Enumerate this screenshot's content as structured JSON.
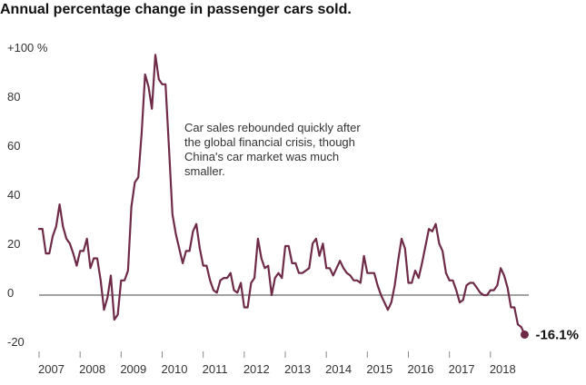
{
  "chart_data": {
    "type": "line",
    "title": "Annual percentage change in passenger cars sold.",
    "ylim": [
      -20,
      100
    ],
    "yticks": [
      {
        "value": 100,
        "label": "+100 %"
      },
      {
        "value": 80,
        "label": "80"
      },
      {
        "value": 60,
        "label": "60"
      },
      {
        "value": 40,
        "label": "40"
      },
      {
        "value": 20,
        "label": "20"
      },
      {
        "value": 0,
        "label": "0"
      },
      {
        "value": -20,
        "label": "-20"
      }
    ],
    "xticks": [
      "2007",
      "2008",
      "2009",
      "2010",
      "2011",
      "2012",
      "2013",
      "2014",
      "2015",
      "2016",
      "2017",
      "2018"
    ],
    "xlim": [
      2007,
      2019
    ],
    "zero_line": true,
    "annotation": "Car sales rebounded quickly after the global financial crisis, though China's car market was much smaller.",
    "annotation_lines": [
      "Car sales rebounded quickly after",
      "the global financial crisis, though",
      "China's car market was much",
      "smaller."
    ],
    "end_label": "-16.1%",
    "colors": {
      "line": "#6e2a47",
      "zero": "#444444",
      "text": "#333333"
    },
    "series": [
      {
        "x": [
          2007.0,
          2007.083,
          2007.167,
          2007.25,
          2007.333,
          2007.417,
          2007.5,
          2007.583,
          2007.667,
          2007.75,
          2007.833,
          2007.917,
          2008.0,
          2008.083,
          2008.167,
          2008.25,
          2008.333,
          2008.417,
          2008.5,
          2008.583,
          2008.667,
          2008.75,
          2008.833,
          2008.917,
          2009.0,
          2009.083,
          2009.167,
          2009.25,
          2009.333,
          2009.417,
          2009.5,
          2009.583,
          2009.667,
          2009.75,
          2009.833,
          2009.917,
          2010.0,
          2010.083,
          2010.167,
          2010.25,
          2010.333,
          2010.417,
          2010.5,
          2010.583,
          2010.667,
          2010.75,
          2010.833,
          2010.917,
          2011.0,
          2011.083,
          2011.167,
          2011.25,
          2011.333,
          2011.417,
          2011.5,
          2011.583,
          2011.667,
          2011.75,
          2011.833,
          2011.917,
          2012.0,
          2012.083,
          2012.167,
          2012.25,
          2012.333,
          2012.417,
          2012.5,
          2012.583,
          2012.667,
          2012.75,
          2012.833,
          2012.917,
          2013.0,
          2013.083,
          2013.167,
          2013.25,
          2013.333,
          2013.417,
          2013.5,
          2013.583,
          2013.667,
          2013.75,
          2013.833,
          2013.917,
          2014.0,
          2014.083,
          2014.167,
          2014.25,
          2014.333,
          2014.417,
          2014.5,
          2014.583,
          2014.667,
          2014.75,
          2014.833,
          2014.917,
          2015.0,
          2015.083,
          2015.167,
          2015.25,
          2015.333,
          2015.417,
          2015.5,
          2015.583,
          2015.667,
          2015.75,
          2015.833,
          2015.917,
          2016.0,
          2016.083,
          2016.167,
          2016.25,
          2016.333,
          2016.417,
          2016.5,
          2016.583,
          2016.667,
          2016.75,
          2016.833,
          2016.917,
          2017.0,
          2017.083,
          2017.167,
          2017.25,
          2017.333,
          2017.417,
          2017.5,
          2017.583,
          2017.667,
          2017.75,
          2017.833,
          2017.917,
          2018.0,
          2018.083,
          2018.167,
          2018.25,
          2018.333,
          2018.417,
          2018.5,
          2018.583,
          2018.667,
          2018.75,
          2018.833
        ],
        "y": [
          27,
          27,
          17,
          17,
          24,
          28,
          37,
          28,
          23,
          21,
          17,
          12,
          18,
          18,
          23,
          11,
          15,
          15,
          6,
          -6,
          -1,
          8,
          -10,
          -8,
          6,
          6,
          10,
          36,
          46,
          48,
          66,
          90,
          85,
          76,
          98,
          88,
          86,
          86,
          60,
          33,
          25,
          19,
          13,
          18,
          18,
          26,
          29,
          19,
          12,
          12,
          6,
          2,
          1,
          6,
          7,
          7,
          9,
          2,
          1,
          5,
          -5,
          -5,
          5,
          7,
          23,
          15,
          11,
          12,
          0,
          7,
          9,
          7,
          20,
          20,
          13,
          13,
          9,
          9,
          10,
          11,
          21,
          23,
          16,
          21,
          11,
          11,
          8,
          11,
          14,
          11,
          9,
          8,
          6,
          6,
          5,
          16,
          9,
          9,
          9,
          4,
          0,
          -3,
          -6,
          -3,
          4,
          14,
          23,
          19,
          5,
          5,
          10,
          7,
          13,
          20,
          27,
          26,
          29,
          21,
          18,
          9,
          6,
          6,
          2,
          -3,
          -2,
          4,
          5,
          5,
          3,
          1,
          0,
          0,
          2,
          2,
          4,
          11,
          8,
          3,
          -5,
          -5,
          -12,
          -13,
          -16.1
        ]
      }
    ]
  }
}
